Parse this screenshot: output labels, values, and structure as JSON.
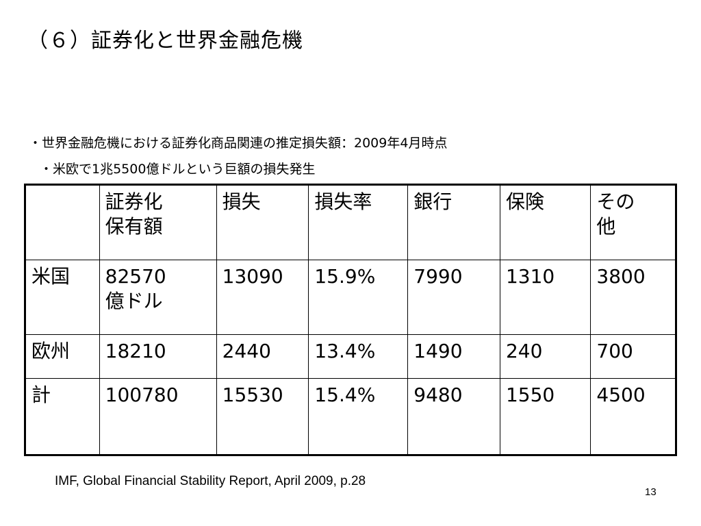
{
  "title": "（６）証券化と世界金融危機",
  "bullets": [
    "・世界金融危機における証券化商品関連の推定損失額：2009年4月時点",
    "・米欧で1兆5500億ドルという巨額の損失発生"
  ],
  "table": {
    "headers": [
      "",
      "証券化\n保有額",
      "損失",
      "損失率",
      "銀行",
      "保険",
      "その\n他"
    ],
    "rows": [
      [
        "米国",
        "82570\n億ドル",
        "13090",
        "15.9%",
        "7990",
        "1310",
        "3800"
      ],
      [
        "欧州",
        "18210",
        "2440",
        "13.4%",
        "1490",
        "240",
        "700"
      ],
      [
        "計",
        "100780",
        "15530",
        "15.4%",
        "9480",
        "1550",
        "4500"
      ]
    ]
  },
  "source": "IMF, Global Financial Stability Report, April 2009, p.28",
  "page_number": "13"
}
